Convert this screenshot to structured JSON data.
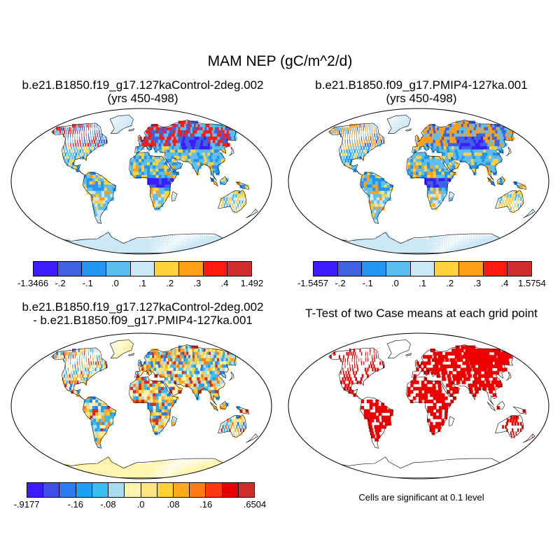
{
  "title": "MAM NEP (gC/m^2/d)",
  "panels": [
    {
      "title_line1": "b.e21.B1850.f19_g17.127kaControl-2deg.002",
      "title_line2": "(yrs 450-498)"
    },
    {
      "title_line1": "b.e21.B1850.f09_g17.PMIP4-127ka.001",
      "title_line2": "(yrs 450-498)"
    },
    {
      "title_line1": "b.e21.B1850.f19_g17.127kaControl-2deg.002",
      "title_line2": "- b.e21.B1850.f09_g17.PMIP4-127ka.001"
    },
    {
      "title_line1": "T-Test of two Case means at each grid point",
      "title_line2": ""
    }
  ],
  "colorbars": [
    {
      "labels": [
        "-1.3466",
        "-.2",
        "-.1",
        ".0",
        ".1",
        ".2",
        ".3",
        ".4",
        "1.492"
      ],
      "colors": [
        "#3d1cff",
        "#3f62e0",
        "#2196f3",
        "#5cbff0",
        "#cce8f6",
        "#ffd23a",
        "#ff9f16",
        "#ff1a10",
        "#cf2e2e"
      ]
    },
    {
      "labels": [
        "-1.5457",
        "-.2",
        "-.1",
        ".0",
        ".1",
        ".2",
        ".3",
        ".4",
        "1.5754"
      ],
      "colors": [
        "#3d1cff",
        "#3f62e0",
        "#2196f3",
        "#5cbff0",
        "#cce8f6",
        "#ffd23a",
        "#ff9f16",
        "#ff1a10",
        "#cf2e2e"
      ]
    },
    {
      "labels": [
        "-.9177",
        "-.16",
        "-.08",
        ".0",
        ".08",
        ".16",
        ".6504"
      ],
      "colors": [
        "#3d1cff",
        "#3f4fe8",
        "#2a7cf0",
        "#1ea0f5",
        "#3bbdf0",
        "#a8dcf0",
        "#fff5b0",
        "#ffe680",
        "#ffd23a",
        "#ffaa1e",
        "#ff7b16",
        "#ff3a10",
        "#e60000",
        "#cf2e2e"
      ]
    }
  ],
  "significance_note": "Cells are significant at 0.1 level",
  "significance_color": "#ee0000"
}
